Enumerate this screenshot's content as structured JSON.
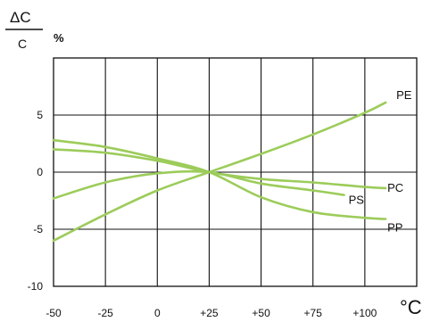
{
  "ylabel": {
    "numerator": "ΔC",
    "denominator": "C",
    "unit": "%"
  },
  "xlabel": "°C",
  "chart_data": {
    "type": "line",
    "xlabel": "°C",
    "ylabel": "ΔC/C %",
    "xlim": [
      -50,
      125
    ],
    "ylim": [
      -10,
      10
    ],
    "x_ticks": [
      {
        "value": -50,
        "label": "-50"
      },
      {
        "value": -25,
        "label": "-25"
      },
      {
        "value": 0,
        "label": "0"
      },
      {
        "value": 25,
        "label": "+25"
      },
      {
        "value": 50,
        "label": "+50"
      },
      {
        "value": 75,
        "label": "+75"
      },
      {
        "value": 100,
        "label": "+100"
      }
    ],
    "y_ticks": [
      {
        "value": 5,
        "label": "5"
      },
      {
        "value": 0,
        "label": "0"
      },
      {
        "value": -5,
        "label": "-5"
      },
      {
        "value": -10,
        "label": "-10"
      }
    ],
    "grid": true,
    "series_color": "#9ccc5a",
    "series": [
      {
        "name": "PE",
        "points": [
          [
            -50,
            -6.0
          ],
          [
            -25,
            -3.7
          ],
          [
            0,
            -1.6
          ],
          [
            25,
            0
          ],
          [
            50,
            1.6
          ],
          [
            75,
            3.3
          ],
          [
            100,
            5.2
          ],
          [
            110,
            6.1
          ]
        ]
      },
      {
        "name": "PC",
        "points": [
          [
            -50,
            2.0
          ],
          [
            -25,
            1.7
          ],
          [
            0,
            1.0
          ],
          [
            25,
            0
          ],
          [
            50,
            -0.6
          ],
          [
            75,
            -0.9
          ],
          [
            100,
            -1.3
          ],
          [
            110,
            -1.4
          ]
        ]
      },
      {
        "name": "PS",
        "points": [
          [
            -50,
            -2.3
          ],
          [
            -25,
            -0.9
          ],
          [
            0,
            -0.1
          ],
          [
            25,
            0
          ],
          [
            50,
            -1.0
          ],
          [
            75,
            -1.6
          ],
          [
            90,
            -2.0
          ]
        ]
      },
      {
        "name": "PP",
        "points": [
          [
            -50,
            2.8
          ],
          [
            -25,
            2.2
          ],
          [
            0,
            1.2
          ],
          [
            25,
            0
          ],
          [
            50,
            -2.2
          ],
          [
            75,
            -3.5
          ],
          [
            100,
            -4.0
          ],
          [
            110,
            -4.1
          ]
        ]
      }
    ]
  }
}
